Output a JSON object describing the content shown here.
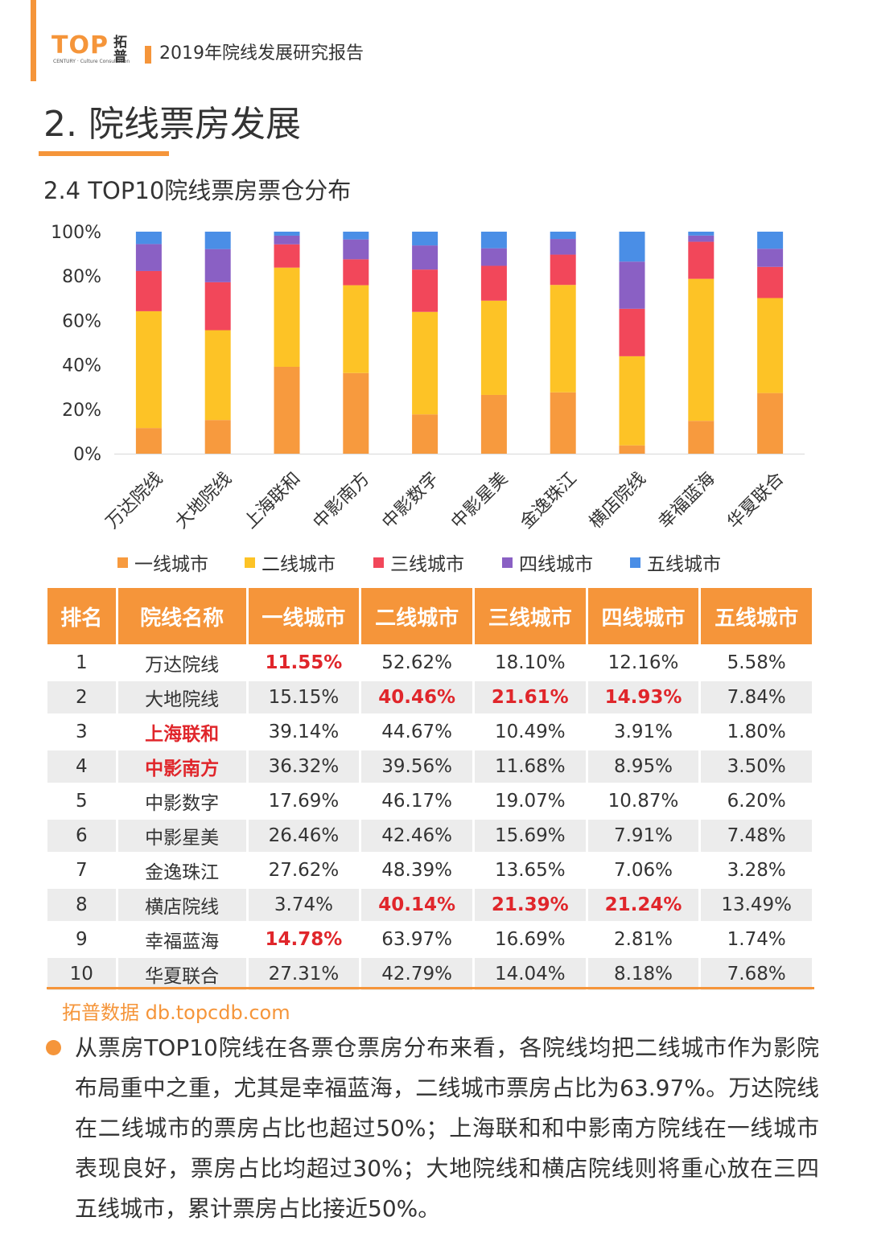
{
  "header": {
    "logo_text": "TOP",
    "logo_sub": "CENTURY · Culture Consultation",
    "logo_cn": "拓普",
    "report_title": "2019年院线发展研究报告"
  },
  "section_title": "2. 院线票房发展",
  "sub_title": "2.4 TOP10院线票房票仓分布",
  "colors": {
    "accent": "#f5953a",
    "tier1": "#f79a3e",
    "tier2": "#fdc326",
    "tier3": "#f2475a",
    "tier4": "#8a60c4",
    "tier5": "#4a8ee6",
    "highlight": "#e0262b"
  },
  "chart_data": {
    "type": "bar",
    "stacked": true,
    "percent": true,
    "categories": [
      "万达院线",
      "大地院线",
      "上海联和",
      "中影南方",
      "中影数字",
      "中影星美",
      "金逸珠江",
      "横店院线",
      "幸福蓝海",
      "华夏联合"
    ],
    "series": [
      {
        "name": "一线城市",
        "values": [
          11.55,
          15.15,
          39.14,
          36.32,
          17.69,
          26.46,
          27.62,
          3.74,
          14.78,
          27.31
        ]
      },
      {
        "name": "二线城市",
        "values": [
          52.62,
          40.46,
          44.67,
          39.56,
          46.17,
          42.46,
          48.39,
          40.14,
          63.97,
          42.79
        ]
      },
      {
        "name": "三线城市",
        "values": [
          18.1,
          21.61,
          10.49,
          11.68,
          19.07,
          15.69,
          13.65,
          21.39,
          16.69,
          14.04
        ]
      },
      {
        "name": "四线城市",
        "values": [
          12.16,
          14.93,
          3.91,
          8.95,
          10.87,
          7.91,
          7.06,
          21.24,
          2.81,
          8.18
        ]
      },
      {
        "name": "五线城市",
        "values": [
          5.58,
          7.84,
          1.8,
          3.5,
          6.2,
          7.48,
          3.28,
          13.49,
          1.74,
          7.68
        ]
      }
    ],
    "yticks": [
      "0%",
      "20%",
      "40%",
      "60%",
      "80%",
      "100%"
    ],
    "ylim": [
      0,
      100
    ],
    "legend": "bottom",
    "grid": false
  },
  "table": {
    "headers": [
      "排名",
      "院线名称",
      "一线城市",
      "二线城市",
      "三线城市",
      "四线城市",
      "五线城市"
    ],
    "rows": [
      [
        "1",
        "万达院线",
        "11.55%",
        "52.62%",
        "18.10%",
        "12.16%",
        "5.58%"
      ],
      [
        "2",
        "大地院线",
        "15.15%",
        "40.46%",
        "21.61%",
        "14.93%",
        "7.84%"
      ],
      [
        "3",
        "上海联和",
        "39.14%",
        "44.67%",
        "10.49%",
        "3.91%",
        "1.80%"
      ],
      [
        "4",
        "中影南方",
        "36.32%",
        "39.56%",
        "11.68%",
        "8.95%",
        "3.50%"
      ],
      [
        "5",
        "中影数字",
        "17.69%",
        "46.17%",
        "19.07%",
        "10.87%",
        "6.20%"
      ],
      [
        "6",
        "中影星美",
        "26.46%",
        "42.46%",
        "15.69%",
        "7.91%",
        "7.48%"
      ],
      [
        "7",
        "金逸珠江",
        "27.62%",
        "48.39%",
        "13.65%",
        "7.06%",
        "3.28%"
      ],
      [
        "8",
        "横店院线",
        "3.74%",
        "40.14%",
        "21.39%",
        "21.24%",
        "13.49%"
      ],
      [
        "9",
        "幸福蓝海",
        "14.78%",
        "63.97%",
        "16.69%",
        "2.81%",
        "1.74%"
      ],
      [
        "10",
        "华夏联合",
        "27.31%",
        "42.79%",
        "14.04%",
        "8.18%",
        "7.68%"
      ]
    ],
    "highlighted": [
      [
        0,
        3
      ],
      [
        1,
        4
      ],
      [
        1,
        5
      ],
      [
        1,
        6
      ],
      [
        2,
        2
      ],
      [
        3,
        2
      ],
      [
        7,
        4
      ],
      [
        7,
        5
      ],
      [
        7,
        6
      ],
      [
        8,
        3
      ]
    ]
  },
  "source": "拓普数据  db.topcdb.com",
  "body_text": "从票房TOP10院线在各票仓票房分布来看，各院线均把二线城市作为影院布局重中之重，尤其是幸福蓝海，二线城市票房占比为63.97%。万达院线在二线城市的票房占比也超过50%；上海联和和中影南方院线在一线城市表现良好，票房占比均超过30%；大地院线和横店院线则将重心放在三四五线城市，累计票房占比接近50%。"
}
